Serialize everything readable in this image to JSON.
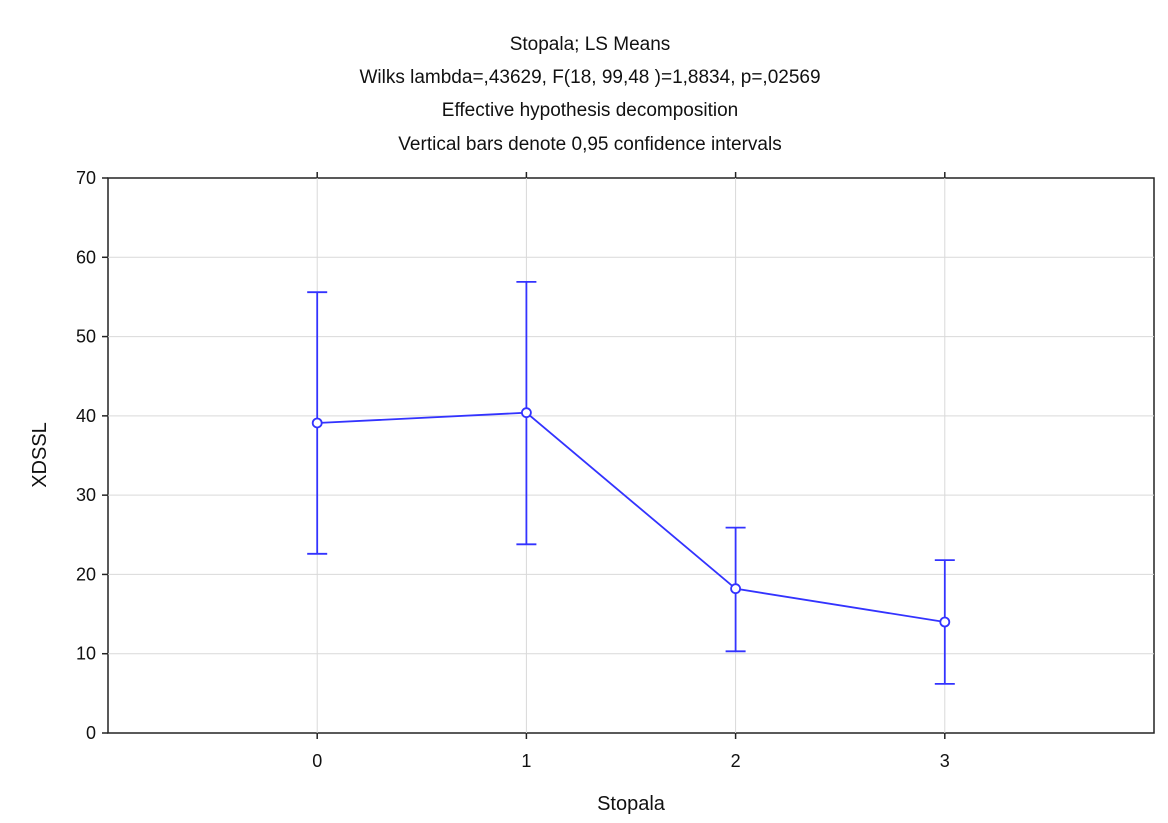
{
  "chart_data": {
    "type": "line",
    "title_lines": [
      "Stopala; LS Means",
      "Wilks lambda=,43629, F(18, 99,48 )=1,8834, p=,02569",
      "Effective hypothesis decomposition",
      "Vertical bars denote 0,95 confidence intervals"
    ],
    "xlabel": "Stopala",
    "ylabel": "XDSSL",
    "x_categories": [
      "0",
      "1",
      "2",
      "3"
    ],
    "xlim": [
      -1,
      4
    ],
    "ylim": [
      0,
      70
    ],
    "y_ticks": [
      0,
      10,
      20,
      30,
      40,
      50,
      60,
      70
    ],
    "grid": true,
    "series": [
      {
        "points": [
          {
            "x": "0",
            "mean": 39.1,
            "lower": 22.6,
            "upper": 55.6
          },
          {
            "x": "1",
            "mean": 40.4,
            "lower": 23.8,
            "upper": 56.9
          },
          {
            "x": "2",
            "mean": 18.2,
            "lower": 10.3,
            "upper": 25.9
          },
          {
            "x": "3",
            "mean": 14.0,
            "lower": 6.2,
            "upper": 21.8
          }
        ],
        "color": "#3333ff"
      }
    ]
  }
}
